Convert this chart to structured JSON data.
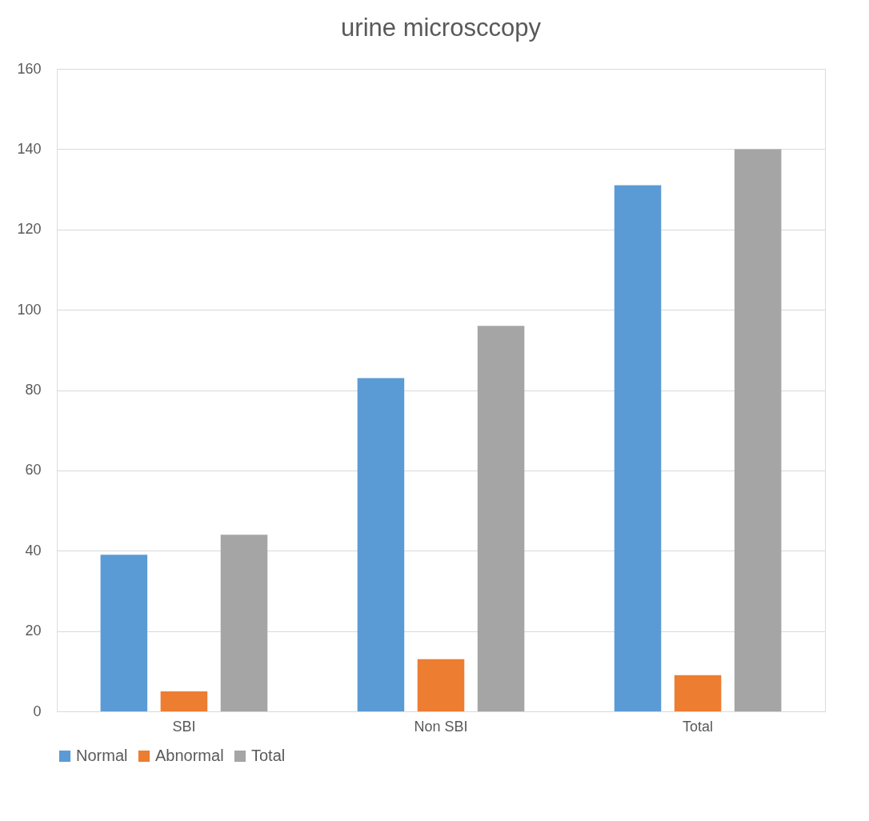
{
  "chart_data": {
    "type": "bar",
    "title": "urine microsccopy",
    "categories": [
      "SBI",
      "Non  SBI",
      "Total"
    ],
    "series": [
      {
        "name": "Normal",
        "color": "#5b9bd5",
        "values": [
          39,
          83,
          131
        ]
      },
      {
        "name": "Abnormal",
        "color": "#ed7d31",
        "values": [
          5,
          13,
          9
        ]
      },
      {
        "name": "Total",
        "color": "#a5a5a5",
        "values": [
          44,
          96,
          140
        ]
      }
    ],
    "ylim": [
      0,
      160
    ],
    "yticks": [
      0,
      20,
      40,
      60,
      80,
      100,
      120,
      140,
      160
    ],
    "grid": "y",
    "legend": "bottom"
  }
}
